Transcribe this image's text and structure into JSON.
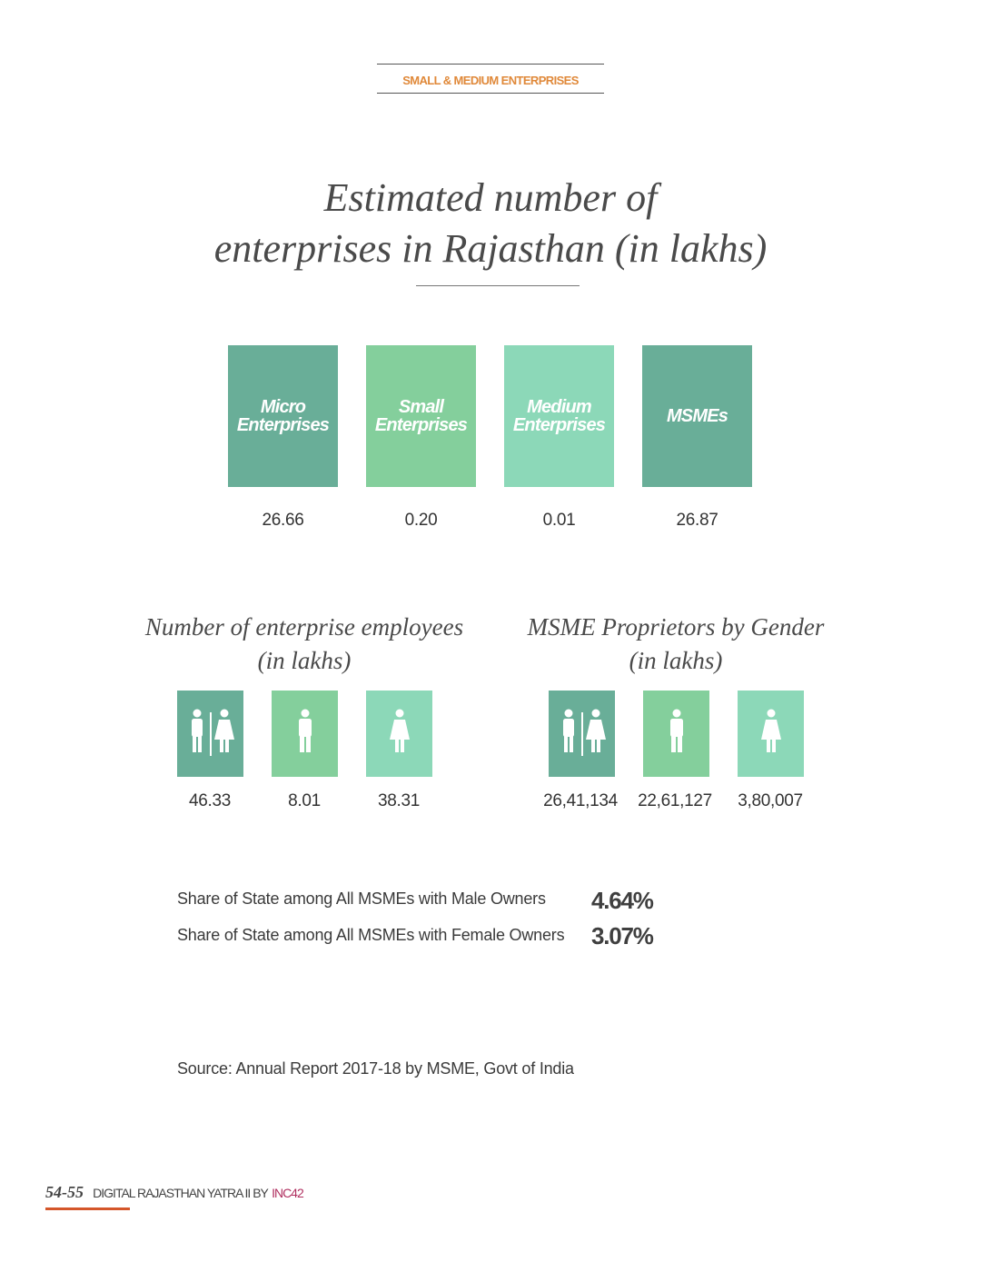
{
  "section": {
    "title": "SMALL & MEDIUM ENTERPRISES"
  },
  "main_title": {
    "line1": "Estimated number of",
    "line2": "enterprises in Rajasthan (in lakhs)"
  },
  "enterprises": [
    {
      "label_line1": "Micro",
      "label_line2": "Enterprises",
      "value": "26.66",
      "color": "#69ae98"
    },
    {
      "label_line1": "Small",
      "label_line2": "Enterprises",
      "value": "0.20",
      "color": "#84cf9c"
    },
    {
      "label_line1": "Medium",
      "label_line2": "Enterprises",
      "value": "0.01",
      "color": "#8cd8b8"
    },
    {
      "label_line1": "MSMEs",
      "label_line2": "",
      "value": "26.87",
      "color": "#69ae98"
    }
  ],
  "employees": {
    "title_line1": "Number of enterprise employees",
    "title_line2": "(in lakhs)",
    "items": [
      {
        "icon": "male-female-icon",
        "value": "46.33",
        "color": "#69ae98"
      },
      {
        "icon": "male-icon",
        "value": "8.01",
        "color": "#84cf9c"
      },
      {
        "icon": "female-icon",
        "value": "38.31",
        "color": "#8cd8b8"
      }
    ]
  },
  "proprietors": {
    "title_line1": "MSME Proprietors by Gender",
    "title_line2": "(in lakhs)",
    "items": [
      {
        "icon": "male-female-icon",
        "value": "26,41,134",
        "color": "#69ae98"
      },
      {
        "icon": "male-icon",
        "value": "22,61,127",
        "color": "#84cf9c"
      },
      {
        "icon": "female-icon",
        "value": "3,80,007",
        "color": "#8cd8b8"
      }
    ]
  },
  "shares": [
    {
      "label": "Share of State among All MSMEs with Male Owners",
      "value": "4.64%"
    },
    {
      "label": "Share of State among All MSMEs with Female Owners",
      "value": "3.07%"
    }
  ],
  "source": "Source: Annual Report 2017-18 by MSME, Govt of India",
  "footer": {
    "pages": "54-55",
    "text": "DIGITAL RAJASTHAN YATRA II BY",
    "brand": "INC42"
  }
}
